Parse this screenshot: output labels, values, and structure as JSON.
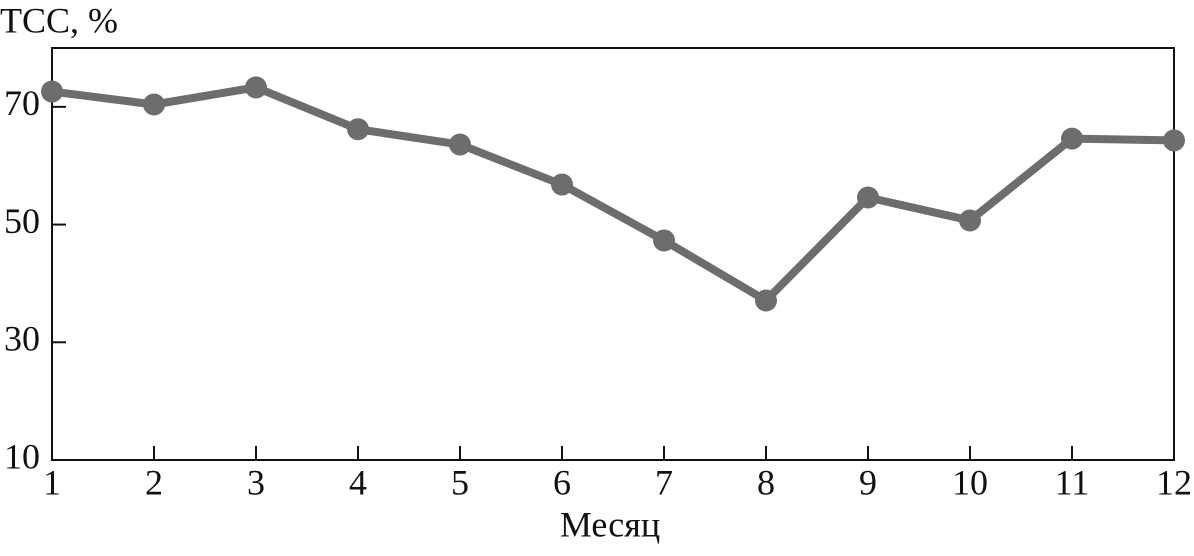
{
  "chart_data": {
    "type": "line",
    "title": "ТСС, %",
    "x_label": "Месяц",
    "x": [
      1,
      2,
      3,
      4,
      5,
      6,
      7,
      8,
      9,
      10,
      11,
      12
    ],
    "series": [
      {
        "name": "ТСС",
        "color": "#6d6d6d",
        "values": [
          72.6,
          70.4,
          73.3,
          66.2,
          63.6,
          56.8,
          47.3,
          37.1,
          54.6,
          50.7,
          64.6,
          64.3
        ]
      }
    ],
    "xlim": [
      1,
      12
    ],
    "xticks": [
      1,
      2,
      3,
      4,
      5,
      6,
      7,
      8,
      9,
      10,
      11,
      12
    ],
    "ylim": [
      10,
      80
    ],
    "yticks": [
      10,
      30,
      50,
      70
    ],
    "grid": false
  }
}
